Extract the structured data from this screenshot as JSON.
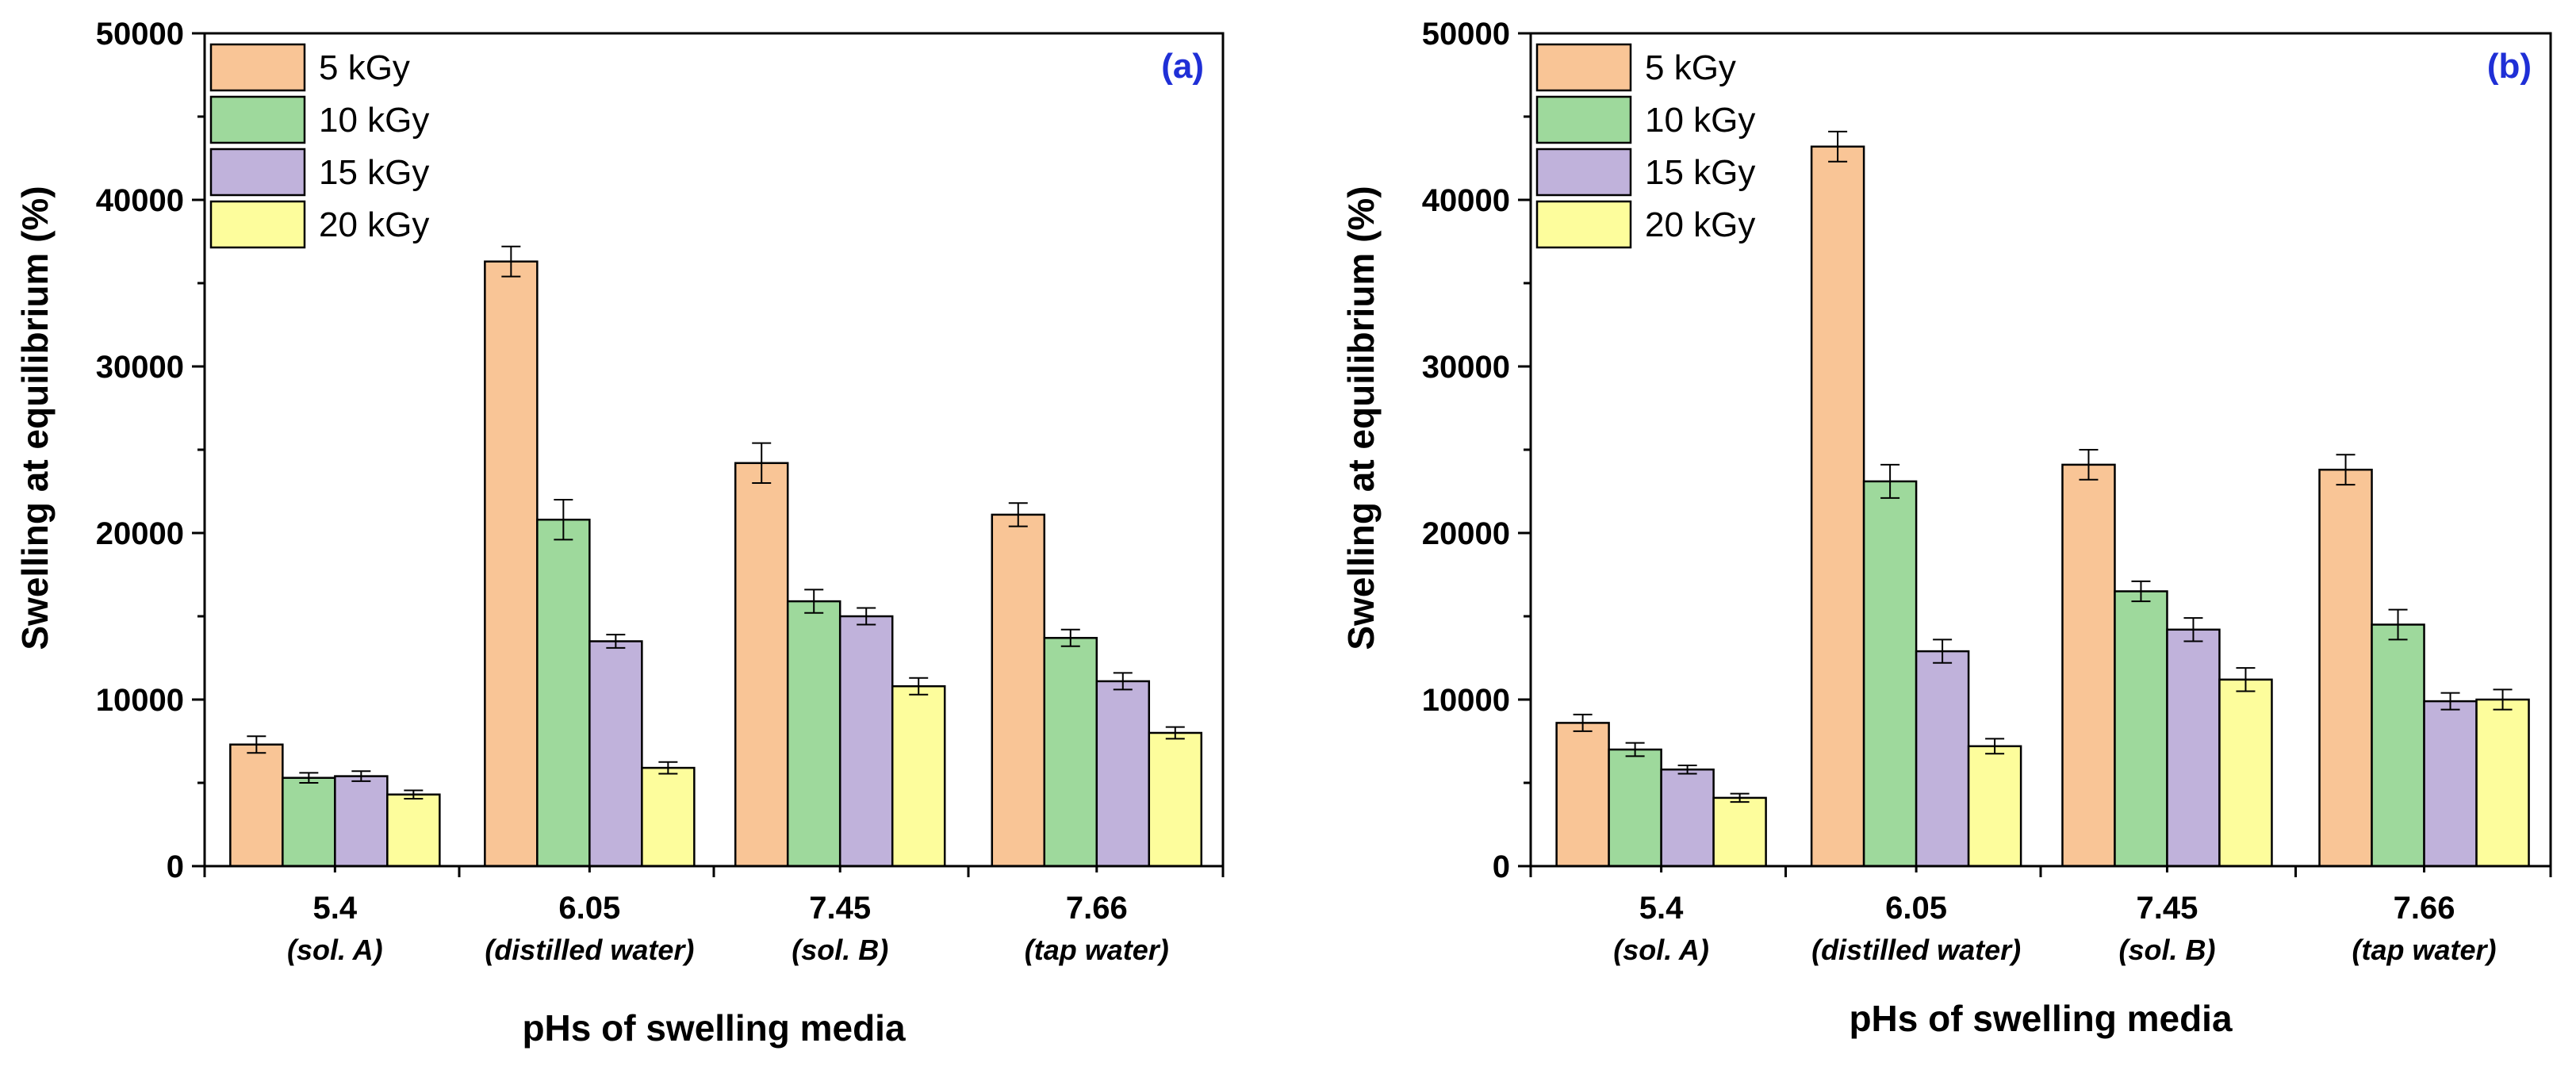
{
  "chart_data": [
    {
      "type": "bar",
      "panel_label": "(a)",
      "categories": [
        "5.4",
        "6.05",
        "7.45",
        "7.66"
      ],
      "category_sublabels": [
        "(sol. A)",
        "(distilled water)",
        "(sol. B)",
        "(tap water)"
      ],
      "xlabel": "pHs of swelling media",
      "ylabel": "Swelling at equilibrium  (%)",
      "ylim": [
        0,
        50000
      ],
      "yticks": [
        "0",
        "10000",
        "20000",
        "30000",
        "40000",
        "50000"
      ],
      "legend_position": "top-left",
      "grid": false,
      "series": [
        {
          "name": "5 kGy",
          "color": "#f9c596",
          "values": [
            7300,
            36300,
            24200,
            21100
          ],
          "errors": [
            500,
            900,
            1200,
            700
          ]
        },
        {
          "name": "10 kGy",
          "color": "#9ed99c",
          "values": [
            5300,
            20800,
            15900,
            13700
          ],
          "errors": [
            300,
            1200,
            700,
            500
          ]
        },
        {
          "name": "15 kGy",
          "color": "#c0b2db",
          "values": [
            5400,
            13500,
            15000,
            11100
          ],
          "errors": [
            300,
            400,
            500,
            500
          ]
        },
        {
          "name": "20 kGy",
          "color": "#fdfd9c",
          "values": [
            4300,
            5900,
            10800,
            8000
          ],
          "errors": [
            250,
            350,
            500,
            350
          ]
        }
      ]
    },
    {
      "type": "bar",
      "panel_label": "(b)",
      "categories": [
        "5.4",
        "6.05",
        "7.45",
        "7.66"
      ],
      "category_sublabels": [
        "(sol. A)",
        "(distilled water)",
        "(sol. B)",
        "(tap water)"
      ],
      "xlabel": "pHs of swelling media",
      "ylabel": "Swelling at equilibrium  (%)",
      "ylim": [
        0,
        50000
      ],
      "yticks": [
        "0",
        "10000",
        "20000",
        "30000",
        "40000",
        "50000"
      ],
      "legend_position": "top-left",
      "grid": false,
      "series": [
        {
          "name": "5 kGy",
          "color": "#f9c596",
          "values": [
            8600,
            43200,
            24100,
            23800
          ],
          "errors": [
            500,
            900,
            900,
            900
          ]
        },
        {
          "name": "10 kGy",
          "color": "#9ed99c",
          "values": [
            7000,
            23100,
            16500,
            14500
          ],
          "errors": [
            400,
            1000,
            600,
            900
          ]
        },
        {
          "name": "15 kGy",
          "color": "#c0b2db",
          "values": [
            5800,
            12900,
            14200,
            9900
          ],
          "errors": [
            250,
            700,
            700,
            500
          ]
        },
        {
          "name": "20 kGy",
          "color": "#fdfd9c",
          "values": [
            4100,
            7200,
            11200,
            10000
          ],
          "errors": [
            250,
            450,
            700,
            600
          ]
        }
      ]
    }
  ]
}
